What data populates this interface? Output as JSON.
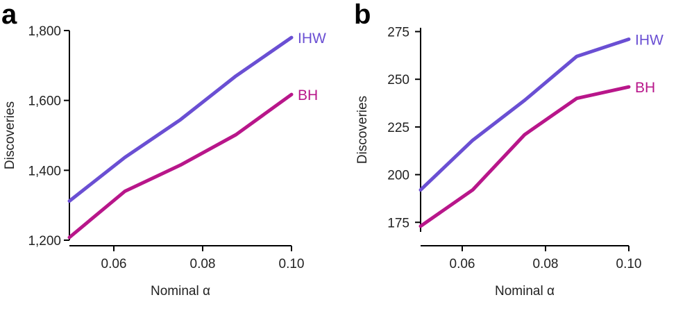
{
  "colors": {
    "ihw": "#6a4fd3",
    "bh": "#b8168a"
  },
  "chart_data": [
    {
      "type": "line",
      "panel": "a",
      "xlabel": "Nominal α",
      "ylabel": "Discoveries",
      "xlim": [
        0.05,
        0.1
      ],
      "ylim": [
        1200,
        1800
      ],
      "xticks": [
        0.06,
        0.08,
        0.1
      ],
      "xtick_labels": [
        "0.06",
        "0.08",
        "0.10"
      ],
      "yticks": [
        1200,
        1400,
        1600,
        1800
      ],
      "ytick_labels": [
        "1,200",
        "1,400",
        "1,600",
        "1,800"
      ],
      "grid": false,
      "x": [
        0.05,
        0.0625,
        0.075,
        0.0875,
        0.1
      ],
      "series": [
        {
          "name": "IHW",
          "color": "#6a4fd3",
          "values": [
            1312,
            1437,
            1545,
            1670,
            1780
          ]
        },
        {
          "name": "BH",
          "color": "#b8168a",
          "values": [
            1208,
            1340,
            1415,
            1502,
            1617
          ]
        }
      ]
    },
    {
      "type": "line",
      "panel": "b",
      "xlabel": "Nominal α",
      "ylabel": "Discoveries",
      "xlim": [
        0.05,
        0.1
      ],
      "ylim": [
        170,
        277
      ],
      "xticks": [
        0.06,
        0.08,
        0.1
      ],
      "xtick_labels": [
        "0.06",
        "0.08",
        "0.10"
      ],
      "yticks": [
        175,
        200,
        225,
        250,
        275
      ],
      "ytick_labels": [
        "175",
        "200",
        "225",
        "250",
        "275"
      ],
      "grid": false,
      "x": [
        0.05,
        0.0625,
        0.075,
        0.0875,
        0.1
      ],
      "series": [
        {
          "name": "IHW",
          "color": "#6a4fd3",
          "values": [
            192,
            218,
            239,
            262,
            271
          ]
        },
        {
          "name": "BH",
          "color": "#b8168a",
          "values": [
            173,
            192,
            221,
            240,
            246
          ]
        }
      ]
    }
  ]
}
